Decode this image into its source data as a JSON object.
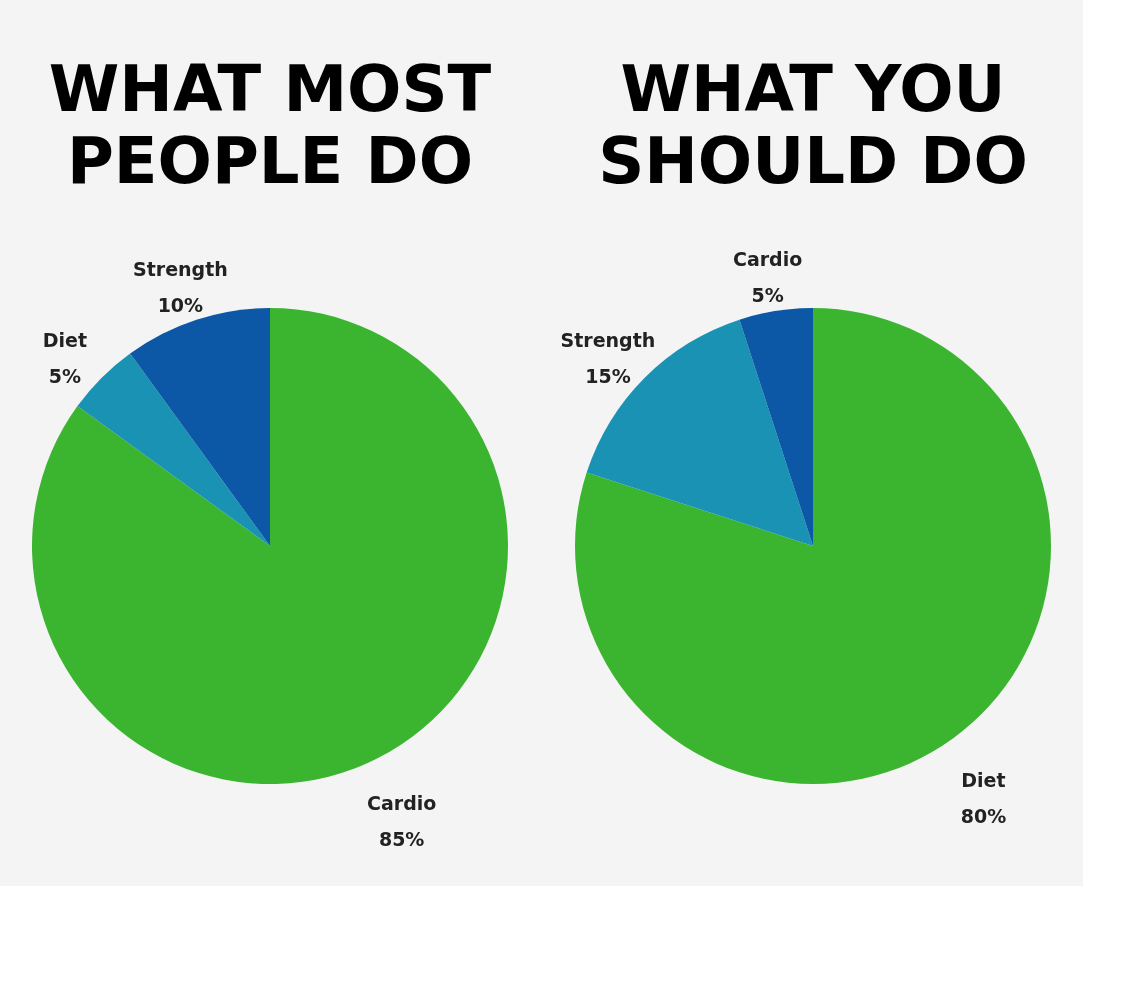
{
  "chart_data": [
    {
      "type": "pie",
      "title": "WHAT MOST\nPEOPLE DO",
      "categories": [
        "Cardio",
        "Diet",
        "Strength"
      ],
      "values": [
        85,
        5,
        10
      ],
      "colors": [
        "#3bb52f",
        "#1a92b3",
        "#0c58a6"
      ],
      "value_labels": [
        "85%",
        "5%",
        "10%"
      ]
    },
    {
      "type": "pie",
      "title": "WHAT YOU\nSHOULD DO",
      "categories": [
        "Diet",
        "Strength",
        "Cardio"
      ],
      "values": [
        80,
        15,
        5
      ],
      "colors": [
        "#3bb52f",
        "#1a92b3",
        "#0c58a6"
      ],
      "value_labels": [
        "80%",
        "15%",
        "5%"
      ]
    }
  ]
}
